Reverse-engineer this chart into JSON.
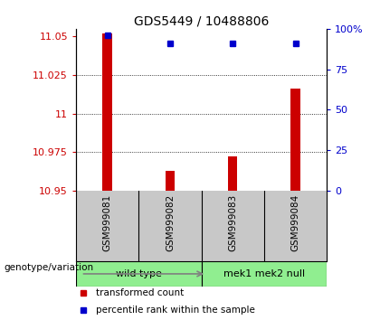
{
  "title": "GDS5449 / 10488806",
  "samples": [
    "GSM999081",
    "GSM999082",
    "GSM999083",
    "GSM999084"
  ],
  "transformed_counts": [
    11.052,
    10.963,
    10.972,
    11.016
  ],
  "percentile_ranks": [
    96,
    91,
    91,
    91
  ],
  "ylim_left": [
    10.95,
    11.055
  ],
  "ylim_right": [
    0,
    100
  ],
  "yticks_left": [
    10.95,
    10.975,
    11.0,
    11.025,
    11.05
  ],
  "yticks_right": [
    0,
    25,
    50,
    75,
    100
  ],
  "ytick_labels_left": [
    "10.95",
    "10.975",
    "11",
    "11.025",
    "11.05"
  ],
  "ytick_labels_right": [
    "0",
    "25",
    "50",
    "75",
    "100%"
  ],
  "bar_color": "#cc0000",
  "dot_color": "#0000cc",
  "groups": [
    {
      "label": "wild type",
      "samples": [
        0,
        1
      ]
    },
    {
      "label": "mek1 mek2 null",
      "samples": [
        2,
        3
      ]
    }
  ],
  "grid_yticks": [
    10.975,
    11.0,
    11.025
  ],
  "bar_width": 0.15,
  "label_area_color": "#c8c8c8",
  "group_color": "#90ee90",
  "bg_color": "#ffffff",
  "legend_red_label": "transformed count",
  "legend_blue_label": "percentile rank within the sample",
  "genotype_label": "genotype/variation"
}
